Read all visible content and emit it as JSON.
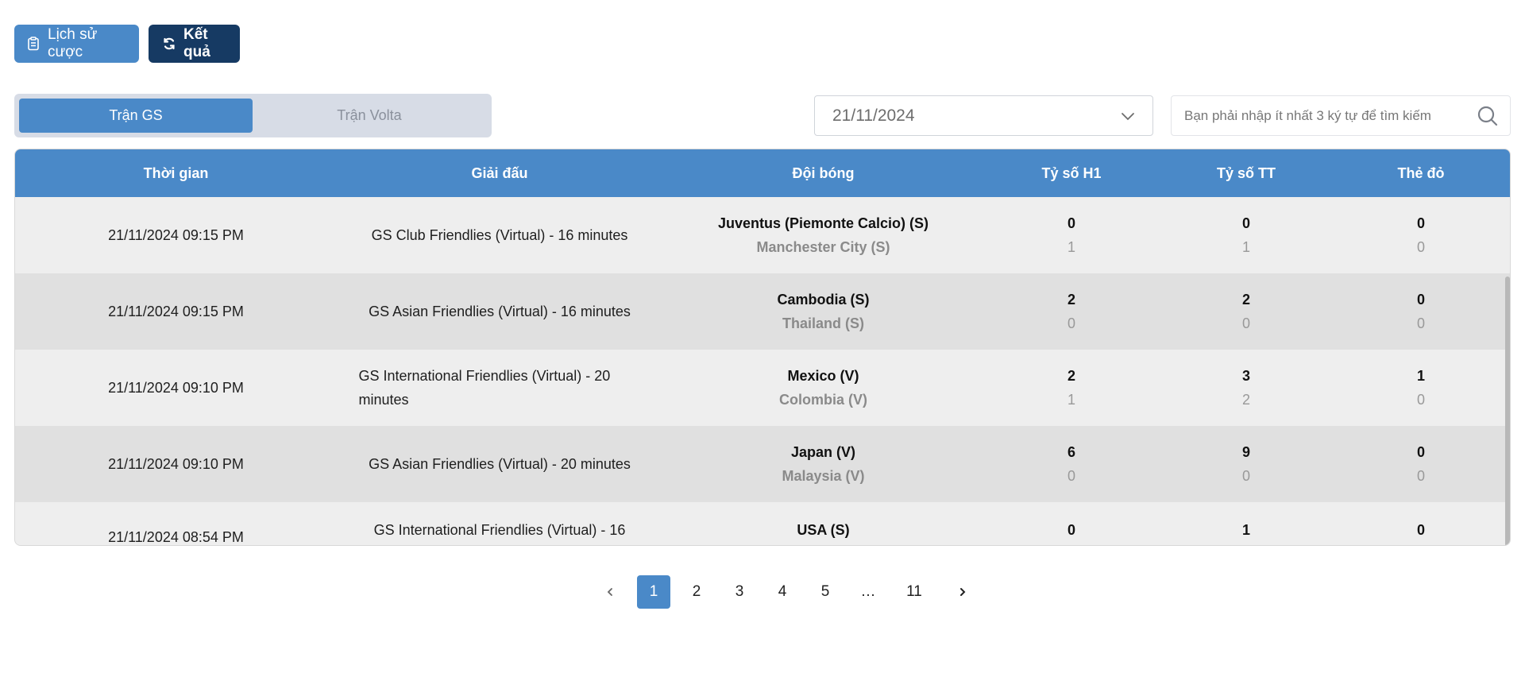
{
  "actions": {
    "history_label": "Lịch sử cược",
    "results_label": "Kết quả"
  },
  "tabs": [
    {
      "label": "Trận GS",
      "active": true
    },
    {
      "label": "Trận Volta",
      "active": false
    }
  ],
  "filters": {
    "date_value": "21/11/2024",
    "search_placeholder": "Bạn phải nhập ít nhất 3 ký tự để tìm kiếm"
  },
  "table": {
    "headers": {
      "time": "Thời gian",
      "league": "Giải đấu",
      "teams": "Đội bóng",
      "h1": "Tỷ số H1",
      "ft": "Tỷ số TT",
      "red": "Thẻ đỏ"
    },
    "rows": [
      {
        "time": "21/11/2024 09:15 PM",
        "league": "GS Club Friendlies (Virtual) - 16 minutes",
        "home": "Juventus (Piemonte Calcio) (S)",
        "away": "Manchester City (S)",
        "h1_home": "0",
        "h1_away": "1",
        "ft_home": "0",
        "ft_away": "1",
        "red_home": "0",
        "red_away": "0"
      },
      {
        "time": "21/11/2024 09:15 PM",
        "league": "GS Asian Friendlies (Virtual) - 16 minutes",
        "home": "Cambodia (S)",
        "away": "Thailand (S)",
        "h1_home": "2",
        "h1_away": "0",
        "ft_home": "2",
        "ft_away": "0",
        "red_home": "0",
        "red_away": "0"
      },
      {
        "time": "21/11/2024 09:10 PM",
        "league": "GS International Friendlies (Virtual) - 20 minutes",
        "home": "Mexico (V)",
        "away": "Colombia (V)",
        "h1_home": "2",
        "h1_away": "1",
        "ft_home": "3",
        "ft_away": "2",
        "red_home": "1",
        "red_away": "0"
      },
      {
        "time": "21/11/2024 09:10 PM",
        "league": "GS Asian Friendlies (Virtual) - 20 minutes",
        "home": "Japan (V)",
        "away": "Malaysia (V)",
        "h1_home": "6",
        "h1_away": "0",
        "ft_home": "9",
        "ft_away": "0",
        "red_home": "0",
        "red_away": "0"
      },
      {
        "time": "21/11/2024 08:54 PM",
        "league": "GS International Friendlies (Virtual) - 16",
        "home": "USA (S)",
        "away": "",
        "h1_home": "0",
        "h1_away": "",
        "ft_home": "1",
        "ft_away": "",
        "red_home": "0",
        "red_away": ""
      }
    ]
  },
  "pagination": {
    "pages": [
      "1",
      "2",
      "3",
      "4",
      "5",
      "…",
      "11"
    ],
    "current": "1"
  },
  "colors": {
    "primary": "#4a89c8",
    "dark": "#163a63"
  },
  "icons": {
    "history": "clipboard-icon",
    "results": "refresh-icon",
    "dropdown": "chevron-down-icon",
    "search": "search-icon",
    "prev": "chevron-left-icon",
    "next": "chevron-right-icon"
  }
}
